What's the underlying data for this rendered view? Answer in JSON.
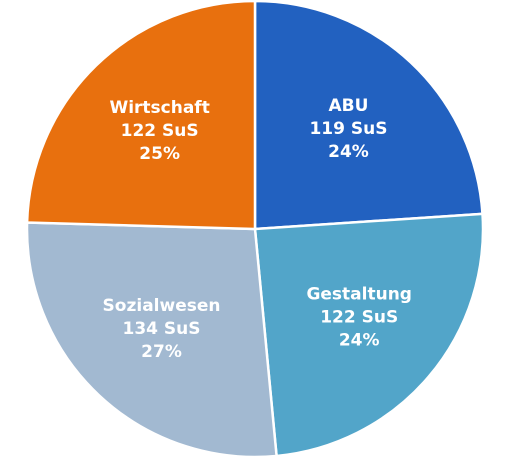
{
  "chart_data": {
    "type": "pie",
    "categories": [
      "ABU",
      "Gestaltung",
      "Sozialwesen",
      "Wirtschaft"
    ],
    "values": [
      119,
      122,
      134,
      122
    ],
    "value_labels": [
      "119 SuS",
      "122 SuS",
      "134 SuS",
      "122 SuS"
    ],
    "percent_labels": [
      "24%",
      "24%",
      "27%",
      "25%"
    ],
    "colors": [
      "#2261c0",
      "#52a5c9",
      "#a2b9d1",
      "#e8700e"
    ]
  }
}
